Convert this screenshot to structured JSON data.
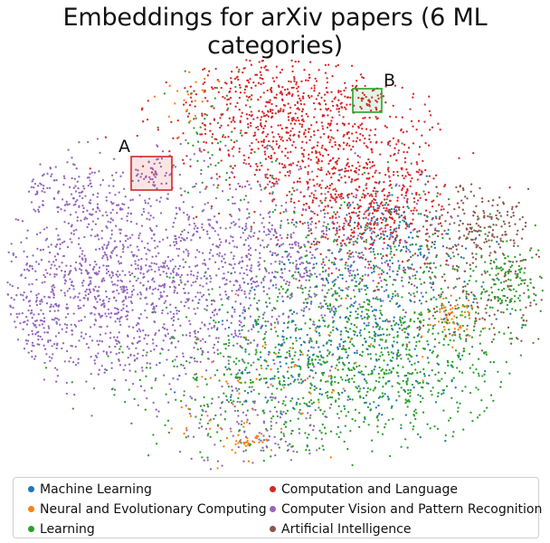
{
  "chart_data": {
    "type": "scatter",
    "title": "Embeddings for arXiv papers (6 ML categories)",
    "xlabel": "",
    "ylabel": "",
    "grid": false,
    "legend_position": "bottom",
    "series": [
      {
        "name": "Machine Learning",
        "color": "#1f77b4"
      },
      {
        "name": "Neural and Evolutionary Computing",
        "color": "#ff7f0e"
      },
      {
        "name": "Learning",
        "color": "#2ca02c"
      },
      {
        "name": "Computation and Language",
        "color": "#d62728"
      },
      {
        "name": "Computer Vision and Pattern Recognition",
        "color": "#9467bd"
      },
      {
        "name": "Artificial Intelligence",
        "color": "#8c564b"
      }
    ],
    "annotations": [
      {
        "label": "A",
        "color": "#d62728"
      },
      {
        "label": "B",
        "color": "#2ca02c"
      }
    ]
  }
}
